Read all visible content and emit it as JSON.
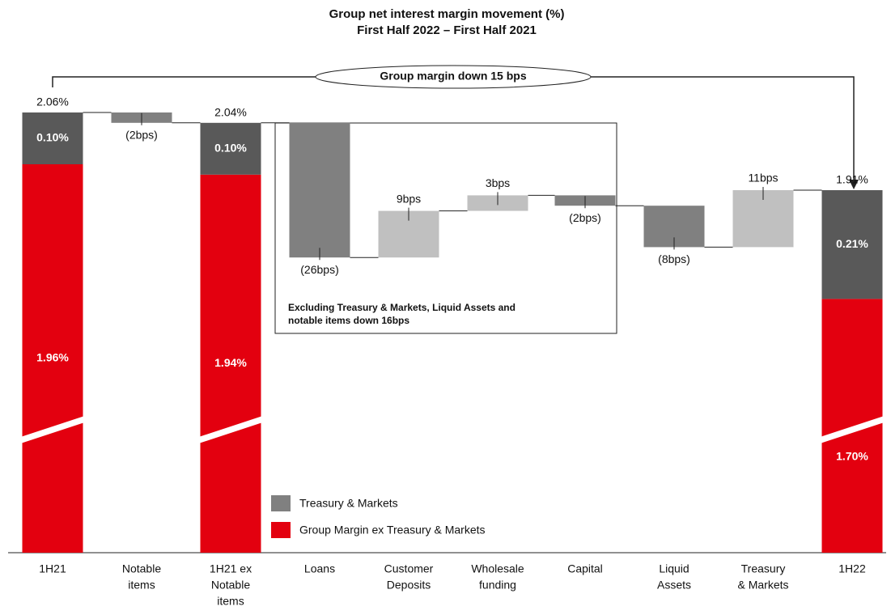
{
  "chart_data": {
    "type": "waterfall",
    "title": [
      "Group net interest margin movement (%)",
      "First Half 2022 – First Half 2021"
    ],
    "categories": [
      [
        "1H21"
      ],
      [
        "Notable",
        "items"
      ],
      [
        "1H21 ex",
        "Notable",
        "items"
      ],
      [
        "Loans"
      ],
      [
        "Customer",
        "Deposits"
      ],
      [
        "Wholesale",
        "funding"
      ],
      [
        "Capital"
      ],
      [
        "Liquid",
        "Assets"
      ],
      [
        "Treasury",
        "& Markets"
      ],
      [
        "1H22"
      ]
    ],
    "measures": [
      "total",
      "relative",
      "total",
      "relative",
      "relative",
      "relative",
      "relative",
      "relative",
      "relative",
      "total"
    ],
    "values": [
      2.06,
      -0.02,
      2.04,
      -0.26,
      0.09,
      0.03,
      -0.02,
      -0.08,
      0.11,
      1.91
    ],
    "value_labels": [
      "2.06%",
      "(2bps)",
      "2.04%",
      "(26bps)",
      "9bps",
      "3bps",
      "(2bps)",
      "(8bps)",
      "11bps",
      "1.91%"
    ],
    "series": [
      {
        "name": "Group Margin ex Treasury & Markets",
        "color": "#e3000f",
        "values": [
          1.96,
          null,
          1.94,
          null,
          null,
          null,
          null,
          null,
          null,
          1.7
        ],
        "value_labels": [
          "1.96%",
          null,
          "1.94%",
          null,
          null,
          null,
          null,
          null,
          null,
          "1.70%"
        ]
      },
      {
        "name": "Treasury & Markets",
        "color": "#595959",
        "values": [
          0.1,
          null,
          0.1,
          null,
          null,
          null,
          null,
          null,
          null,
          0.21
        ],
        "value_labels": [
          "0.10%",
          null,
          "0.10%",
          null,
          null,
          null,
          null,
          null,
          null,
          "0.21%"
        ]
      }
    ],
    "increase_color": "#c0c0c0",
    "decrease_color": "#808080",
    "ylim": [
      1.21,
      2.21
    ],
    "axis_break": true,
    "annotations": [
      "Group margin down 15 bps",
      [
        "Excluding Treasury & Markets, Liquid Assets and",
        "notable items down 16bps"
      ]
    ]
  }
}
